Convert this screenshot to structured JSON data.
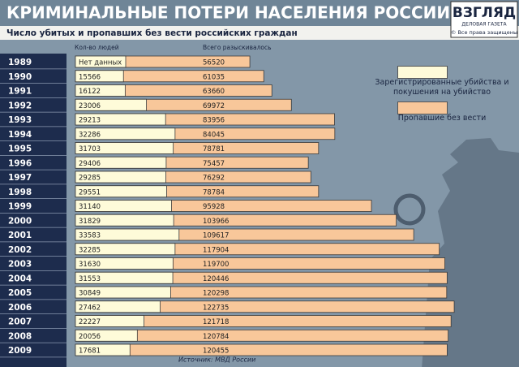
{
  "chart_data": {
    "type": "bar",
    "orientation": "horizontal",
    "title": "КРИМИНАЛЬНЫЕ ПОТЕРИ НАСЕЛЕНИЯ РОССИИ",
    "subtitle": "Число убитых и пропавших без вести российских граждан",
    "logo": "ВЗГЛЯД",
    "logo_sub": "ДЕЛОВАЯ ГАЗЕТА",
    "copyright": "© Все права защищены",
    "column_labels": [
      "Кол-во людей",
      "Всего разыскивалось"
    ],
    "source": "Источник: МВД России",
    "missing_label": "Нет данных",
    "categories": [
      "1989",
      "1990",
      "1991",
      "1992",
      "1993",
      "1994",
      "1995",
      "1996",
      "1997",
      "1998",
      "1999",
      "2000",
      "2001",
      "2002",
      "2003",
      "2004",
      "2005",
      "2006",
      "2007",
      "2008",
      "2009"
    ],
    "xlim": [
      0,
      144000
    ],
    "series": [
      {
        "name": "Пропавшие без вести",
        "color": "#f8c79a",
        "values": [
          56520,
          61035,
          63660,
          69972,
          83956,
          84045,
          78781,
          75457,
          76292,
          78784,
          95928,
          103966,
          109617,
          117904,
          119700,
          120446,
          120298,
          122735,
          121718,
          120784,
          120455
        ]
      },
      {
        "name": "Зарегистрированные убийства и покушения на убийство",
        "color": "#fefbd9",
        "values": [
          null,
          15566,
          16122,
          23006,
          29213,
          32286,
          31703,
          29406,
          29285,
          29551,
          31140,
          31829,
          33583,
          32285,
          31630,
          31553,
          30849,
          27462,
          22227,
          20056,
          17681
        ]
      }
    ]
  }
}
